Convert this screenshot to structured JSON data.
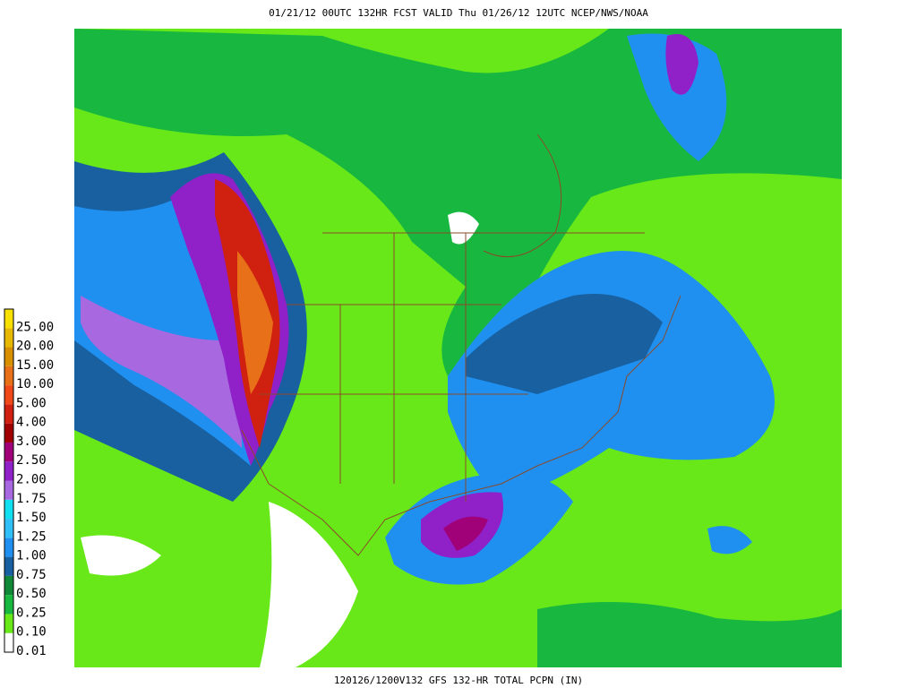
{
  "header": {
    "title": "01/21/12 00UTC  132HR  FCST VALID Thu 01/26/12 12UTC  NCEP/NWS/NOAA"
  },
  "footer": {
    "caption": "120126/1200V132 GFS 132-HR TOTAL PCPN (IN)"
  },
  "legend": {
    "entries": [
      {
        "label": "25.00",
        "color": "#f8e000"
      },
      {
        "label": "20.00",
        "color": "#e8b800"
      },
      {
        "label": "15.00",
        "color": "#d89000"
      },
      {
        "label": "10.00",
        "color": "#e87018"
      },
      {
        "label": "5.00",
        "color": "#f04818"
      },
      {
        "label": "4.00",
        "color": "#d02010"
      },
      {
        "label": "3.00",
        "color": "#a00000"
      },
      {
        "label": "2.50",
        "color": "#a00078"
      },
      {
        "label": "2.00",
        "color": "#9020c8"
      },
      {
        "label": "1.75",
        "color": "#a868e0"
      },
      {
        "label": "1.50",
        "color": "#10e0f0"
      },
      {
        "label": "1.25",
        "color": "#30c0f8"
      },
      {
        "label": "1.00",
        "color": "#2090f0"
      },
      {
        "label": "0.75",
        "color": "#1860a0"
      },
      {
        "label": "0.50",
        "color": "#108838"
      },
      {
        "label": "0.25",
        "color": "#18b840"
      },
      {
        "label": "0.10",
        "color": "#68e818"
      },
      {
        "label": "0.01",
        "color": "#ffffff"
      }
    ]
  }
}
